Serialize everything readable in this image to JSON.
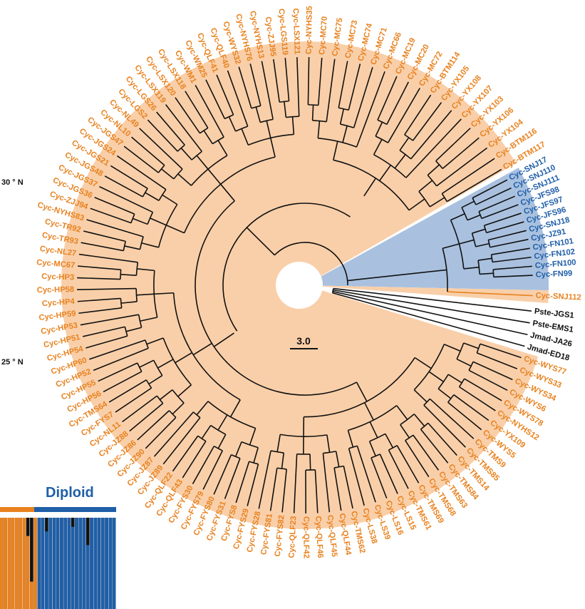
{
  "latitude_labels": {
    "north_30": "30 ° N",
    "north_25": "25 ° N"
  },
  "scale_bar": {
    "label": "3.0"
  },
  "structure_panel": {
    "title": "Diploid"
  },
  "colors": {
    "cycas_text": "#e8821f",
    "cycas_fill": "#f9cfa9",
    "blue_text": "#1f5fa8",
    "blue_fill": "#a9c1df",
    "outgroup_text": "#111111",
    "branch": "#111111"
  },
  "leaves_orange_top": [
    "Cyc-NYHS35",
    "Cyc-MC70",
    "Cyc-MC75",
    "Cyc-MC73",
    "Cyc-MC74",
    "Cyc-MC71",
    "Cyc-MC66",
    "Cyc-MC19",
    "Cyc-MC20",
    "Cyc-MC72",
    "Cyc-BTM114",
    "Cyc-YX105",
    "Cyc-YX108",
    "Cyc-YX107",
    "Cyc-YX103",
    "Cyc-YX106",
    "Cyc-YX104",
    "Cyc-BTM116",
    "Cyc-BTM117"
  ],
  "leaves_blue": [
    "Cyc-SNJ17",
    "Cyc-SNJ110",
    "Cyc-SNJ111",
    "Cyc-JFS98",
    "Cyc-JFS97",
    "Cyc-JFS96",
    "Cyc-SNJ18",
    "Cyc-JZ91",
    "Cyc-FN101",
    "Cyc-FN102",
    "Cyc-FN100",
    "Cyc-FN99"
  ],
  "leaf_snj112": "Cyc-SNJ112",
  "leaves_outgroup": [
    "Pste-JGS1",
    "Pste-EMS1",
    "Jmad-JA26",
    "Jmad-ED18"
  ],
  "leaves_orange_bottom": [
    "Cyc-WYS77",
    "Cyc-WYS33",
    "Cyc-WYS34",
    "Cyc-WYS6",
    "Cyc-WYS78",
    "Cyc-NYHS12",
    "Cyc-YX109",
    "Cyc-WYS5",
    "Cyc-TMS9",
    "Cyc-TMS85",
    "Cyc-TMS14",
    "Cyc-TMS84",
    "Cyc-TMS63",
    "Cyc-TMS68",
    "Cyc-TMS69",
    "Cyc-TMS61",
    "Cyc-LS15",
    "Cyc-LS16",
    "Cyc-LS39",
    "Cyc-LS38",
    "Cyc-TMS62",
    "Cyc-QLF44",
    "Cyc-QLF45",
    "Cyc-QLF46",
    "Cyc-QLF42",
    "Cyc-QLF23",
    "Cyc-FYS82",
    "Cyc-FYS81",
    "Cyc-FYS28",
    "Cyc-FYS29",
    "Cyc-FYS8",
    "Cyc-FYS31",
    "Cyc-FYS80",
    "Cyc-FYS79",
    "Cyc-FYS30",
    "Cyc-QLF43",
    "Cyc-QLF22",
    "Cyc-JZ89",
    "Cyc-JZ87",
    "Cyc-JZ90",
    "Cyc-JZ86",
    "Cyc-JZ88",
    "Cyc-NL11",
    "Cyc-FYS7",
    "Cyc-TMS64",
    "Cyc-HP56",
    "Cyc-HP55",
    "Cyc-HP52",
    "Cyc-HP60",
    "Cyc-HP54",
    "Cyc-HP51",
    "Cyc-HP53",
    "Cyc-HP59",
    "Cyc-HP4",
    "Cyc-HP58",
    "Cyc-HP3",
    "Cyc-MC67",
    "Cyc-NL27",
    "Cyc-TR93",
    "Cyc-TR92",
    "Cyc-NYHS83",
    "Cyc-ZJJ94",
    "Cyc-JGS36",
    "Cyc-JGS37",
    "Cyc-JGS48",
    "Cyc-JGS21",
    "Cyc-JGS24",
    "Cyc-JGS47",
    "Cyc-NL10",
    "Cyc-NL49",
    "Cyc-LGS2",
    "Cyc-LGS26",
    "Cyc-LSX119",
    "Cyc-LSX120",
    "Cyc-LSX118",
    "Cyc-WM1",
    "Cyc-WM25",
    "Cyc-QLF41",
    "Cyc-QLF40",
    "Cyc-WYS32",
    "Cyc-NYHS76",
    "Cyc-NYHS13",
    "Cyc-ZJJ95",
    "Cyc-LGS119",
    "Cyc-LSX121"
  ],
  "structure_bars": [
    1,
    1,
    1,
    1,
    1,
    1,
    1,
    0.8,
    0.3,
    1,
    0,
    0,
    0.15,
    0,
    0,
    0,
    0,
    0,
    0,
    0.1,
    0,
    0,
    0,
    0.3,
    0,
    0,
    0,
    0,
    0,
    0,
    0
  ]
}
